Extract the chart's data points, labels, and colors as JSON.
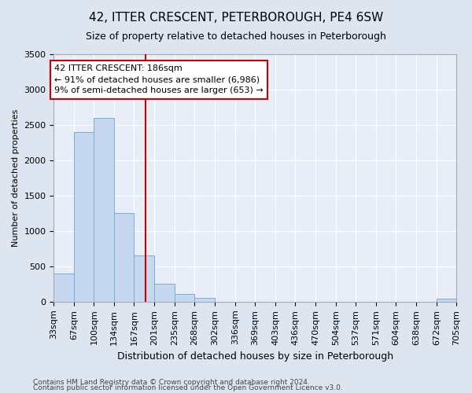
{
  "title": "42, ITTER CRESCENT, PETERBOROUGH, PE4 6SW",
  "subtitle": "Size of property relative to detached houses in Peterborough",
  "xlabel": "Distribution of detached houses by size in Peterborough",
  "ylabel": "Number of detached properties",
  "bar_color": "#c5d8f0",
  "bar_edge_color": "#7aadd4",
  "background_color": "#e8eef7",
  "grid_color": "#ffffff",
  "annotation_box_color": "#cc0000",
  "vline_color": "#cc0000",
  "vline_x": 186,
  "bin_edges": [
    33,
    67,
    100,
    134,
    167,
    201,
    235,
    268,
    302,
    336,
    369,
    403,
    436,
    470,
    504,
    537,
    571,
    604,
    638,
    672,
    705
  ],
  "bar_heights": [
    400,
    2400,
    2600,
    1250,
    650,
    260,
    110,
    60,
    0,
    0,
    0,
    0,
    0,
    0,
    0,
    0,
    0,
    0,
    0,
    40
  ],
  "ylim": [
    0,
    3500
  ],
  "yticks": [
    0,
    500,
    1000,
    1500,
    2000,
    2500,
    3000,
    3500
  ],
  "annotation_line1": "42 ITTER CRESCENT: 186sqm",
  "annotation_line2": "← 91% of detached houses are smaller (6,986)",
  "annotation_line3": "9% of semi-detached houses are larger (653) →",
  "footnote1": "Contains HM Land Registry data © Crown copyright and database right 2024.",
  "footnote2": "Contains public sector information licensed under the Open Government Licence v3.0.",
  "title_fontsize": 11,
  "subtitle_fontsize": 9,
  "ylabel_fontsize": 8,
  "xlabel_fontsize": 9,
  "tick_fontsize": 8,
  "annotation_fontsize": 8,
  "footnote_fontsize": 6.5
}
